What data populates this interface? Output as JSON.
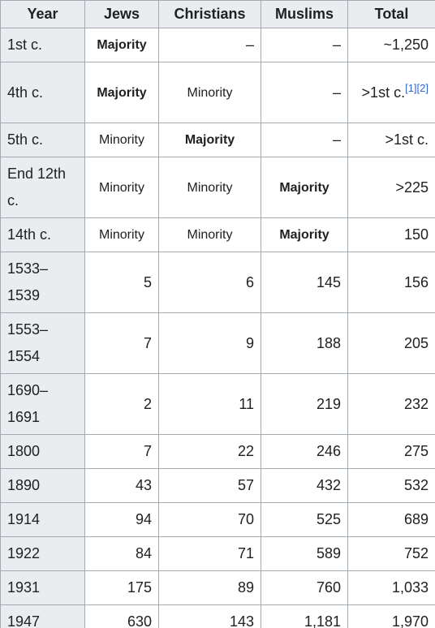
{
  "table": {
    "headers": [
      "Year",
      "Jews",
      "Christians",
      "Muslims",
      "Total"
    ],
    "rows": [
      {
        "year": "1st c.",
        "jews": "Majority",
        "christians": "–",
        "muslims": "–",
        "total": "~1,250",
        "total_refs": ""
      },
      {
        "year": "4th c.",
        "jews": "Majority",
        "christians": "Minority",
        "muslims": "–",
        "total": ">1st c.",
        "total_refs": "[1][2]"
      },
      {
        "year": "5th c.",
        "jews": "Minority",
        "christians": "Majority",
        "muslims": "–",
        "total": ">1st c.",
        "total_refs": ""
      },
      {
        "year": "End 12th c.",
        "jews": "Minority",
        "christians": "Minority",
        "muslims": "Majority",
        "total": ">225",
        "total_refs": ""
      },
      {
        "year": "14th c.",
        "jews": "Minority",
        "christians": "Minority",
        "muslims": "Majority",
        "total": "150",
        "total_refs": ""
      },
      {
        "year": "1533–1539",
        "jews": "5",
        "christians": "6",
        "muslims": "145",
        "total": "156",
        "total_refs": ""
      },
      {
        "year": "1553–1554",
        "jews": "7",
        "christians": "9",
        "muslims": "188",
        "total": "205",
        "total_refs": ""
      },
      {
        "year": "1690–1691",
        "jews": "2",
        "christians": "11",
        "muslims": "219",
        "total": "232",
        "total_refs": ""
      },
      {
        "year": "1800",
        "jews": "7",
        "christians": "22",
        "muslims": "246",
        "total": "275",
        "total_refs": ""
      },
      {
        "year": "1890",
        "jews": "43",
        "christians": "57",
        "muslims": "432",
        "total": "532",
        "total_refs": ""
      },
      {
        "year": "1914",
        "jews": "94",
        "christians": "70",
        "muslims": "525",
        "total": "689",
        "total_refs": ""
      },
      {
        "year": "1922",
        "jews": "84",
        "christians": "71",
        "muslims": "589",
        "total": "752",
        "total_refs": ""
      },
      {
        "year": "1931",
        "jews": "175",
        "christians": "89",
        "muslims": "760",
        "total": "1,033",
        "total_refs": ""
      },
      {
        "year": "1947",
        "jews": "630",
        "christians": "143",
        "muslims": "1,181",
        "total": "1,970",
        "total_refs": ""
      }
    ]
  },
  "colors": {
    "header_bg": "#eaecf0",
    "border": "#a2a9b1",
    "text": "#202122",
    "link": "#3366cc"
  }
}
